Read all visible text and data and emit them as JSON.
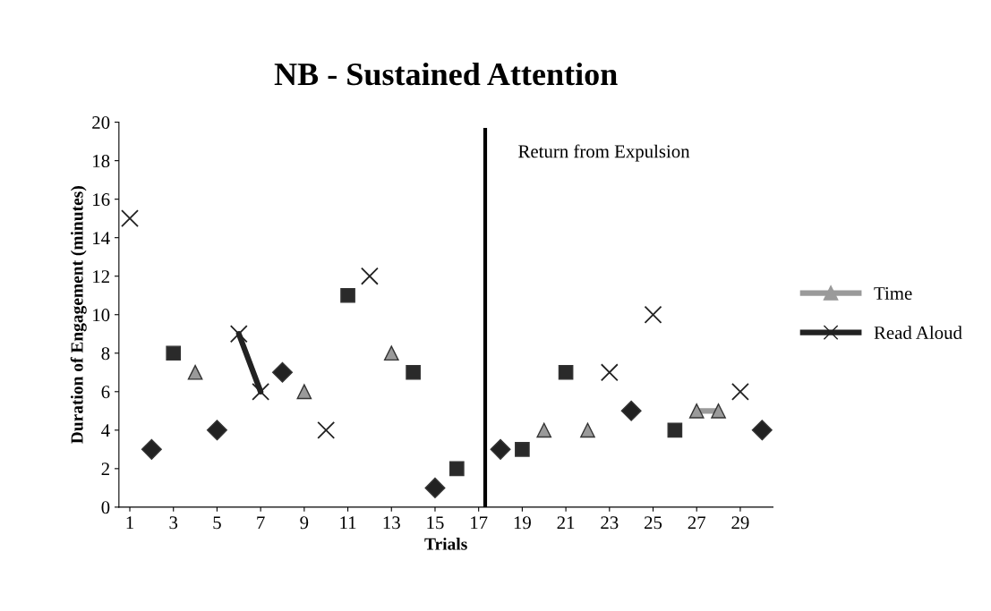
{
  "chart_data": {
    "type": "line",
    "title": "NB - Sustained Attention",
    "xlabel": "Trials",
    "ylabel": "Duration of Engagement (minutes)",
    "x": [
      1,
      2,
      3,
      4,
      5,
      6,
      7,
      8,
      9,
      10,
      11,
      12,
      13,
      14,
      15,
      16,
      17,
      18,
      19,
      20,
      21,
      22,
      23,
      24,
      25,
      26,
      27,
      28,
      29,
      30
    ],
    "xlim": [
      0.5,
      30.5
    ],
    "xticks": [
      1,
      3,
      5,
      7,
      9,
      11,
      13,
      15,
      17,
      19,
      21,
      23,
      25,
      27,
      29
    ],
    "ylim": [
      0,
      20
    ],
    "yticks": [
      0,
      2,
      4,
      6,
      8,
      10,
      12,
      14,
      16,
      18,
      20
    ],
    "series": [
      {
        "color": "#222222",
        "marker": "diamond",
        "values": [
          null,
          3,
          null,
          null,
          4,
          null,
          null,
          7,
          null,
          null,
          null,
          null,
          null,
          null,
          1,
          null,
          null,
          3,
          null,
          null,
          null,
          null,
          null,
          5,
          null,
          null,
          null,
          null,
          null,
          4
        ]
      },
      {
        "color": "#2a2a2a",
        "marker": "square",
        "values": [
          null,
          null,
          8,
          null,
          null,
          null,
          null,
          null,
          null,
          null,
          11,
          null,
          null,
          7,
          null,
          2,
          null,
          null,
          3,
          null,
          7,
          null,
          null,
          null,
          null,
          4,
          null,
          null,
          null,
          null
        ]
      },
      {
        "name": "Time",
        "color": "#9a9a9a",
        "marker": "triangle",
        "values": [
          null,
          null,
          null,
          7,
          null,
          null,
          null,
          null,
          6,
          null,
          null,
          null,
          8,
          null,
          null,
          null,
          null,
          null,
          null,
          4,
          null,
          4,
          null,
          null,
          null,
          null,
          5,
          5,
          null,
          null
        ]
      },
      {
        "name": "Read Aloud",
        "color": "#222222",
        "marker": "cross",
        "values": [
          15,
          null,
          null,
          null,
          null,
          9,
          6,
          null,
          null,
          4,
          null,
          12,
          null,
          null,
          null,
          null,
          null,
          null,
          null,
          null,
          null,
          null,
          7,
          null,
          10,
          null,
          null,
          null,
          6,
          null
        ]
      }
    ],
    "ref_lines": [
      {
        "axis": "x",
        "value": 17.3,
        "label": "Return from Expulsion",
        "color": "#000000"
      }
    ],
    "legend": "right",
    "grid": false
  }
}
